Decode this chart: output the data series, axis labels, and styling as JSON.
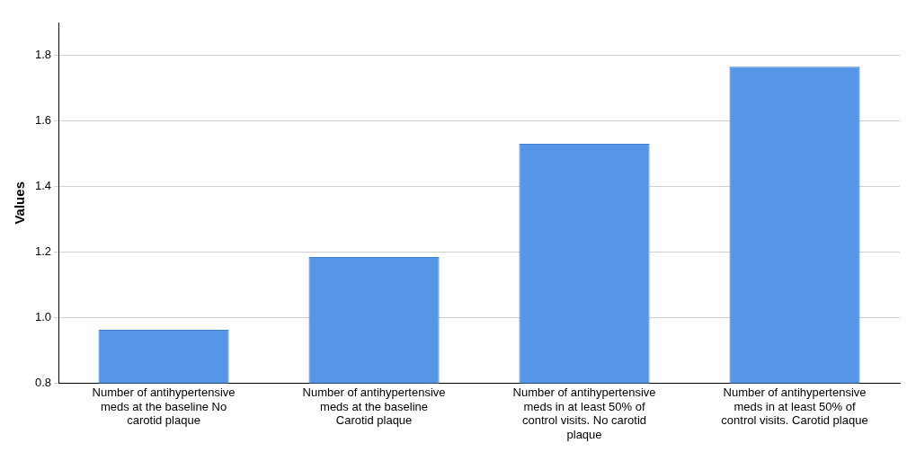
{
  "chart_data": {
    "type": "bar",
    "ylabel": "Values",
    "categories": [
      "Number of antihypertensive meds at the baseline No carotid plaque",
      "Number of antihypertensive meds at the baseline Carotid plaque",
      "Number of antihypertensive meds in at least 50% of control visits. No carotid plaque",
      "Number of antihypertensive meds in at least 50% of control visits. Carotid plaque"
    ],
    "values": [
      0.963,
      1.185,
      1.53,
      1.765
    ],
    "color": "#5597e6",
    "ylim": [
      0.8,
      1.9
    ],
    "yticks": [
      {
        "value": 0.8,
        "label": "0.8"
      },
      {
        "value": 1.0,
        "label": "1.0"
      },
      {
        "value": 1.2,
        "label": "1.2"
      },
      {
        "value": 1.4,
        "label": "1.4"
      },
      {
        "value": 1.6,
        "label": "1.6"
      },
      {
        "value": 1.8,
        "label": "1.8"
      }
    ],
    "grid": "y"
  }
}
